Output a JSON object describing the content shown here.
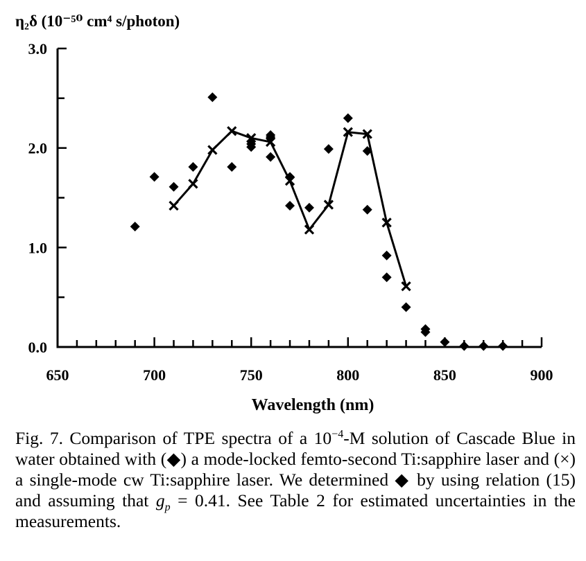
{
  "chart_data": {
    "type": "scatter",
    "title": "",
    "ylabel": "η₂δ (10⁻⁵⁰ cm⁴ s/photon)",
    "xlabel": "Wavelength (nm)",
    "xlim": [
      650,
      900
    ],
    "ylim": [
      0,
      3.0
    ],
    "x_ticks": [
      "650",
      "700",
      "750",
      "800",
      "850",
      "900"
    ],
    "y_ticks": [
      "0.0",
      "1.0",
      "2.0",
      "3.0"
    ],
    "grid": false,
    "legend": "none",
    "series": [
      {
        "name": "mode-locked femtosecond Ti:sapphire laser",
        "marker": "diamond",
        "line": false,
        "points": [
          {
            "x": 690,
            "y": 1.21
          },
          {
            "x": 700,
            "y": 1.71
          },
          {
            "x": 710,
            "y": 1.61
          },
          {
            "x": 720,
            "y": 1.81
          },
          {
            "x": 730,
            "y": 2.51
          },
          {
            "x": 740,
            "y": 1.81
          },
          {
            "x": 750,
            "y": 2.01
          },
          {
            "x": 750,
            "y": 2.04
          },
          {
            "x": 760,
            "y": 2.11
          },
          {
            "x": 760,
            "y": 2.13
          },
          {
            "x": 760,
            "y": 1.91
          },
          {
            "x": 770,
            "y": 1.71
          },
          {
            "x": 770,
            "y": 1.42
          },
          {
            "x": 780,
            "y": 1.4
          },
          {
            "x": 790,
            "y": 1.99
          },
          {
            "x": 800,
            "y": 2.3
          },
          {
            "x": 810,
            "y": 1.97
          },
          {
            "x": 810,
            "y": 1.38
          },
          {
            "x": 820,
            "y": 0.92
          },
          {
            "x": 820,
            "y": 0.7
          },
          {
            "x": 830,
            "y": 0.4
          },
          {
            "x": 840,
            "y": 0.18
          },
          {
            "x": 840,
            "y": 0.15
          },
          {
            "x": 850,
            "y": 0.05
          },
          {
            "x": 860,
            "y": 0.01
          },
          {
            "x": 870,
            "y": 0.01
          },
          {
            "x": 880,
            "y": 0.01
          }
        ]
      },
      {
        "name": "single-mode cw Ti:sapphire laser",
        "marker": "cross",
        "line": true,
        "points": [
          {
            "x": 710,
            "y": 1.42
          },
          {
            "x": 720,
            "y": 1.64
          },
          {
            "x": 730,
            "y": 1.98
          },
          {
            "x": 740,
            "y": 2.17
          },
          {
            "x": 750,
            "y": 2.1
          },
          {
            "x": 760,
            "y": 2.06
          },
          {
            "x": 770,
            "y": 1.67
          },
          {
            "x": 780,
            "y": 1.18
          },
          {
            "x": 790,
            "y": 1.43
          },
          {
            "x": 800,
            "y": 2.16
          },
          {
            "x": 810,
            "y": 2.14
          },
          {
            "x": 820,
            "y": 1.25
          },
          {
            "x": 830,
            "y": 0.61
          }
        ]
      }
    ]
  },
  "caption": {
    "fig_label": "Fig. 7.",
    "t1": "Comparison of TPE spectra of a 10",
    "exp": "−4",
    "t2": "-M solution of Cascade Blue in water obtained with (◆) a mode-locked femto-second Ti:sapphire laser and (×) a single-mode cw Ti:sapphire laser.  We determined ◆ by using relation (15) and assuming that ",
    "g": "g",
    "gsub": "p",
    "t3": " = 0.41.  See Table 2 for estimated uncertainties in the measurements."
  }
}
